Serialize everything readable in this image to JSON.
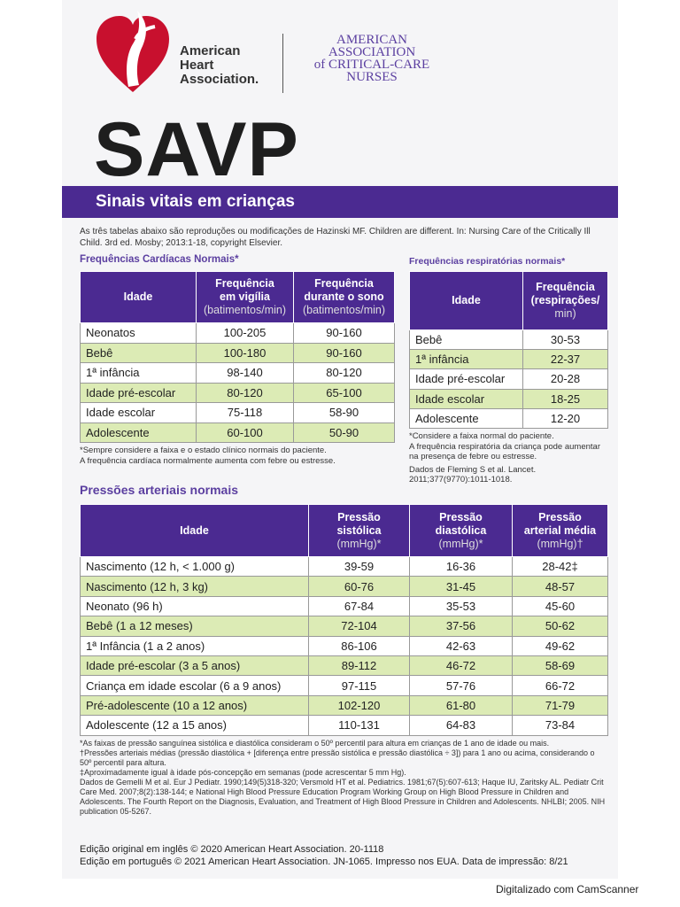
{
  "header": {
    "aha_lines": [
      "American",
      "Heart",
      "Association."
    ],
    "aacn_lines": [
      "AMERICAN",
      "ASSOCIATION",
      "of CRITICAL-CARE",
      "NURSES"
    ],
    "title": "SAVP",
    "subtitle": "Sinais vitais em crianças"
  },
  "intro": "As três tabelas abaixo são reproduções ou modificações de Hazinski MF. Children are different. In: Nursing Care of the Critically Ill Child. 3rd ed. Mosby; 2013:1-18, copyright Elsevier.",
  "heart": {
    "title": "Frequências Cardíacas Normais*",
    "headers": [
      [
        "Idade"
      ],
      [
        "Frequência",
        "em vigília",
        "(batimentos/min)"
      ],
      [
        "Frequência",
        "durante o sono",
        "(batimentos/min)"
      ]
    ],
    "rows": [
      [
        "Neonatos",
        "100-205",
        "90-160"
      ],
      [
        "Bebê",
        "100-180",
        "90-160"
      ],
      [
        "1ª infância",
        "98-140",
        "80-120"
      ],
      [
        "Idade pré-escolar",
        "80-120",
        "65-100"
      ],
      [
        "Idade escolar",
        "75-118",
        "58-90"
      ],
      [
        "Adolescente",
        "60-100",
        "50-90"
      ]
    ],
    "notes": [
      "*Sempre considere a faixa e o estado clínico normais do paciente.",
      "A frequência cardíaca normalmente aumenta com febre ou estresse."
    ]
  },
  "resp": {
    "title": "Frequências respiratórias normais*",
    "headers": [
      [
        "Idade"
      ],
      [
        "Frequência",
        "(respirações/",
        "min)"
      ]
    ],
    "rows": [
      [
        "Bebê",
        "30-53"
      ],
      [
        "1ª infância",
        "22-37"
      ],
      [
        "Idade pré-escolar",
        "20-28"
      ],
      [
        "Idade escolar",
        "18-25"
      ],
      [
        "Adolescente",
        "12-20"
      ]
    ],
    "notes": [
      "*Considere a faixa normal do paciente.",
      "A frequência respiratória da criança pode aumentar na presença de febre ou estresse.",
      "Dados de Fleming S et al. Lancet. 2011;377(9770):1011-1018."
    ]
  },
  "bp": {
    "title": "Pressões arteriais normais",
    "headers": [
      [
        "Idade"
      ],
      [
        "Pressão",
        "sistólica",
        "(mmHg)*"
      ],
      [
        "Pressão",
        "diastólica",
        "(mmHg)*"
      ],
      [
        "Pressão",
        "arterial média",
        "(mmHg)†"
      ]
    ],
    "rows": [
      [
        "Nascimento (12 h, < 1.000 g)",
        "39-59",
        "16-36",
        "28-42‡"
      ],
      [
        "Nascimento (12 h, 3 kg)",
        "60-76",
        "31-45",
        "48-57"
      ],
      [
        "Neonato (96 h)",
        "67-84",
        "35-53",
        "45-60"
      ],
      [
        "Bebê (1 a 12 meses)",
        "72-104",
        "37-56",
        "50-62"
      ],
      [
        "1ª Infância (1 a 2 anos)",
        "86-106",
        "42-63",
        "49-62"
      ],
      [
        "Idade pré-escolar (3 a 5 anos)",
        "89-112",
        "46-72",
        "58-69"
      ],
      [
        "Criança em idade escolar (6 a 9 anos)",
        "97-115",
        "57-76",
        "66-72"
      ],
      [
        "Pré-adolescente (10 a 12 anos)",
        "102-120",
        "61-80",
        "71-79"
      ],
      [
        "Adolescente (12 a 15 anos)",
        "110-131",
        "64-83",
        "73-84"
      ]
    ],
    "notes": [
      "*As faixas de pressão sanguínea sistólica e diastólica consideram o 50º percentil para altura em crianças de 1 ano de idade ou mais.",
      "†Pressões arteriais médias (pressão diastólica + [diferença entre pressão sistólica e pressão diastólica ÷ 3]) para 1 ano ou acima, considerando o 50º percentil para altura.",
      "‡Aproximadamente igual à idade pós-concepção em semanas (pode acrescentar 5 mm Hg).",
      "Dados de Gemelli M et al. Eur J Pediatr. 1990;149(5)318-320; Versmold HT et al. Pediatrics. 1981;67(5):607-613; Haque IU, Zaritsky AL. Pediatr Crit Care Med. 2007;8(2):138-144; e National High Blood Pressure Education Program Working Group on High Blood Pressure in Children and Adolescents. The Fourth Report on the Diagnosis, Evaluation, and Treatment of High Blood Pressure in Children and Adolescents. NHLBI; 2005. NIH publication 05-5267."
    ]
  },
  "edition": [
    "Edição original em inglês © 2020 American Heart Association. 20-1118",
    "Edição em português © 2021 American Heart Association. JN-1065. Impresso nos EUA. Data de impressão: 8/21"
  ],
  "footer": "Digitalizado com CamScanner"
}
